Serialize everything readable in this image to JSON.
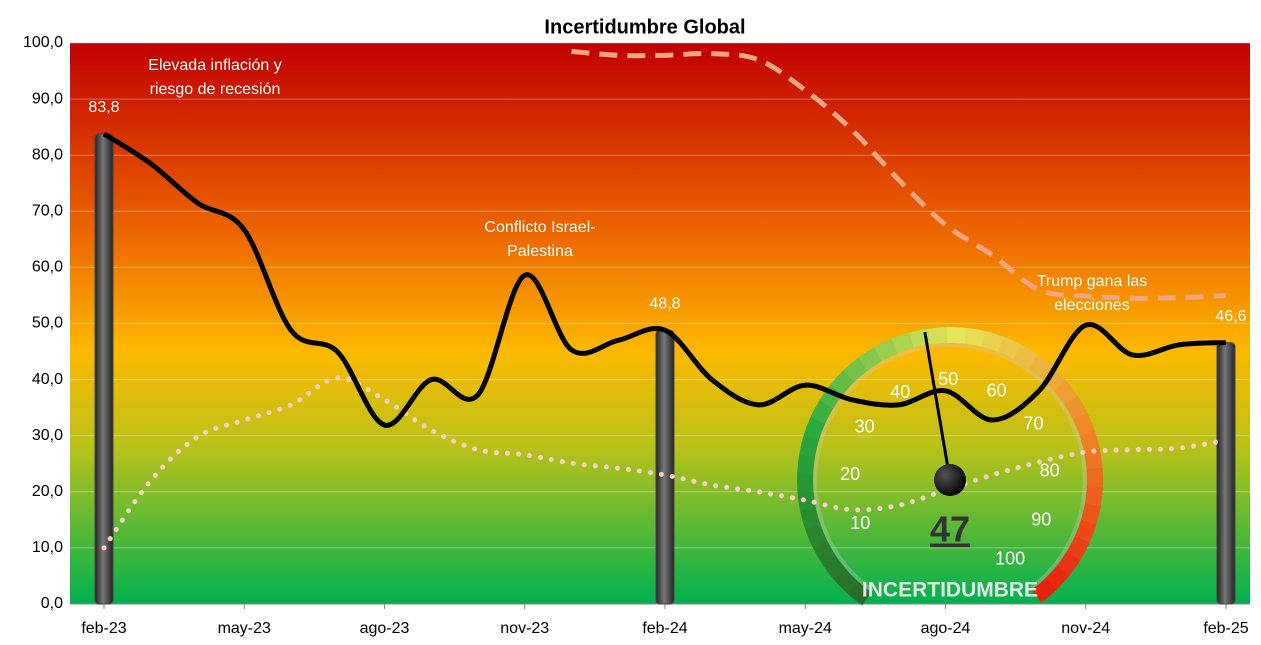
{
  "chart_data": {
    "type": "line",
    "title": "Incertidumbre Global",
    "categories": [
      "feb-23",
      null,
      null,
      "may-23",
      null,
      null,
      "ago-23",
      null,
      null,
      "nov-23",
      null,
      null,
      "feb-24",
      null,
      null,
      "may-24",
      null,
      null,
      "ago-24",
      null,
      null,
      "nov-24",
      null,
      null,
      "feb-25"
    ],
    "series": [
      {
        "color": "#000000",
        "values": [
          83.8,
          78.5,
          71.5,
          66.7,
          48.8,
          44.9,
          31.9,
          40,
          37.3,
          58.6,
          45.3,
          47,
          48.8,
          40,
          35.5,
          39,
          36.4,
          35.5,
          38,
          32.8,
          38,
          49.7,
          44.4,
          46.2,
          46.6
        ]
      },
      {
        "color": "#f4a582",
        "values": [
          null,
          null,
          null,
          null,
          null,
          null,
          null,
          null,
          null,
          null,
          98.5,
          97.8,
          97.8,
          98.1,
          97,
          91.6,
          84.5,
          75.6,
          67.6,
          62.2,
          56,
          54.9,
          54.5,
          54.6,
          55
        ]
      },
      {
        "color": "#f9d0c4",
        "values": [
          10,
          22,
          29.8,
          32.8,
          35.5,
          40.3,
          36.4,
          31,
          27.5,
          26.6,
          25.1,
          24.2,
          23,
          21.2,
          20,
          18.5,
          16.8,
          17.6,
          20.3,
          23,
          25.3,
          27.1,
          27.5,
          27.8,
          29.2
        ]
      }
    ],
    "bars": {
      "color": "#444444",
      "values": [
        83.8,
        null,
        null,
        null,
        null,
        null,
        null,
        null,
        null,
        null,
        null,
        null,
        48.8,
        null,
        null,
        null,
        null,
        null,
        null,
        null,
        null,
        null,
        null,
        null,
        46.6
      ],
      "value_labels": [
        "83,8",
        null,
        null,
        null,
        null,
        null,
        null,
        null,
        null,
        null,
        null,
        null,
        "48,8",
        null,
        null,
        null,
        null,
        null,
        null,
        null,
        null,
        null,
        null,
        null,
        "46,6"
      ]
    },
    "annotations": [
      {
        "lines": [
          "Elevada inflación y",
          "riesgo de recesión"
        ]
      },
      {
        "lines": [
          "Conflicto Israel-",
          "Palestina"
        ]
      },
      {
        "lines": [
          "Trump gana las",
          "elecciones"
        ]
      }
    ],
    "ylim": [
      0,
      100
    ],
    "yticks": [
      {
        "value": 0,
        "label": "0,0"
      },
      {
        "value": 10,
        "label": "10,0"
      },
      {
        "value": 20,
        "label": "20,0"
      },
      {
        "value": 30,
        "label": "30,0"
      },
      {
        "value": 40,
        "label": "40,0"
      },
      {
        "value": 50,
        "label": "50,0"
      },
      {
        "value": 60,
        "label": "60,0"
      },
      {
        "value": 70,
        "label": "70,0"
      },
      {
        "value": 80,
        "label": "80,0"
      },
      {
        "value": 90,
        "label": "90,0"
      },
      {
        "value": 100,
        "label": "100,0"
      }
    ],
    "grid": true,
    "gauge": {
      "value": 47,
      "label": "INCERTIDUMBRE",
      "ticks": [
        10,
        20,
        30,
        40,
        50,
        60,
        70,
        80,
        90,
        100
      ]
    }
  }
}
